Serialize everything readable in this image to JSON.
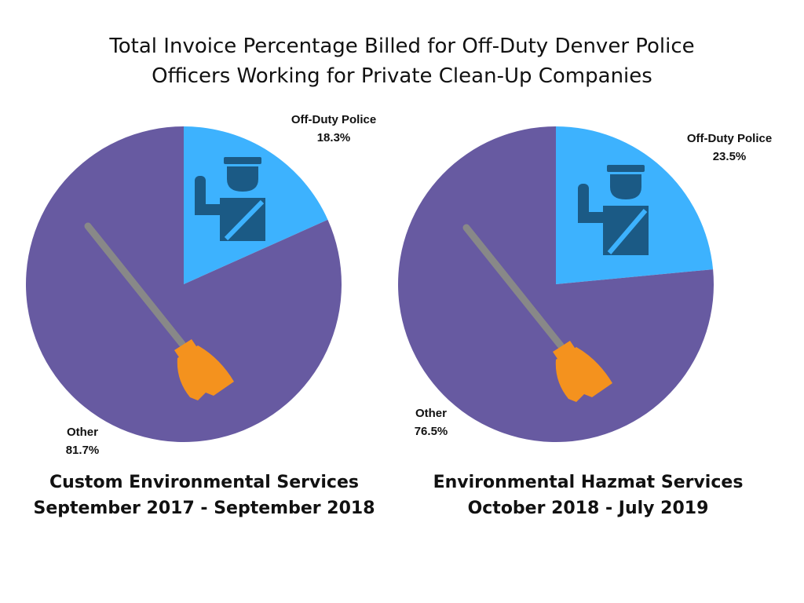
{
  "title": {
    "line1": "Total Invoice Percentage Billed for Off-Duty Denver Police",
    "line2": "Officers Working for Private Clean-Up Companies"
  },
  "colors": {
    "police": "#3db2fe",
    "other": "#675aa1",
    "police_icon": "#1b5a85",
    "broom_handle": "#888888",
    "broom_head": "#f4921e"
  },
  "icons": [
    "police-officer-icon",
    "broom-icon"
  ],
  "chart_data": [
    {
      "type": "pie",
      "title": "",
      "slices": [
        {
          "label": "Off-Duty Police",
          "value": 18.3,
          "display": "18.3%"
        },
        {
          "label": "Other",
          "value": 81.7,
          "display": "81.7%"
        }
      ],
      "caption": {
        "line1": "Custom Environmental Services",
        "line2": "September 2017 - September 2018"
      }
    },
    {
      "type": "pie",
      "title": "",
      "slices": [
        {
          "label": "Off-Duty Police",
          "value": 23.5,
          "display": "23.5%"
        },
        {
          "label": "Other",
          "value": 76.5,
          "display": "76.5%"
        }
      ],
      "caption": {
        "line1": "Environmental Hazmat Services",
        "line2": "October 2018 - July 2019"
      }
    }
  ]
}
